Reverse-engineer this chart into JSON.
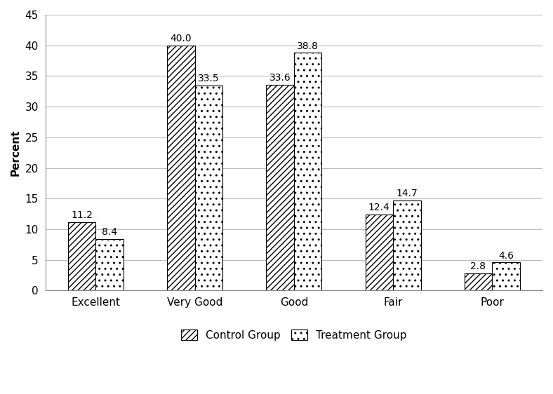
{
  "categories": [
    "Excellent",
    "Very Good",
    "Good",
    "Fair",
    "Poor"
  ],
  "control_values": [
    11.2,
    40.0,
    33.6,
    12.4,
    2.8
  ],
  "treatment_values": [
    8.4,
    33.5,
    38.8,
    14.7,
    4.6
  ],
  "ylabel": "Percent",
  "ylim": [
    0,
    45
  ],
  "yticks": [
    0,
    5,
    10,
    15,
    20,
    25,
    30,
    35,
    40,
    45
  ],
  "bar_width": 0.28,
  "control_hatch": "////",
  "treatment_hatch": "..",
  "control_color": "#ffffff",
  "treatment_color": "#ffffff",
  "control_edge_color": "#000000",
  "treatment_edge_color": "#000000",
  "control_label": "Control Group",
  "treatment_label": "Treatment Group",
  "font_size_labels": 11,
  "font_size_bar_values": 10,
  "font_size_axis": 11,
  "font_size_legend": 11,
  "background_color": "#ffffff",
  "grid_color": "#bbbbbb",
  "figwidth": 7.88,
  "figheight": 5.62,
  "dpi": 100
}
